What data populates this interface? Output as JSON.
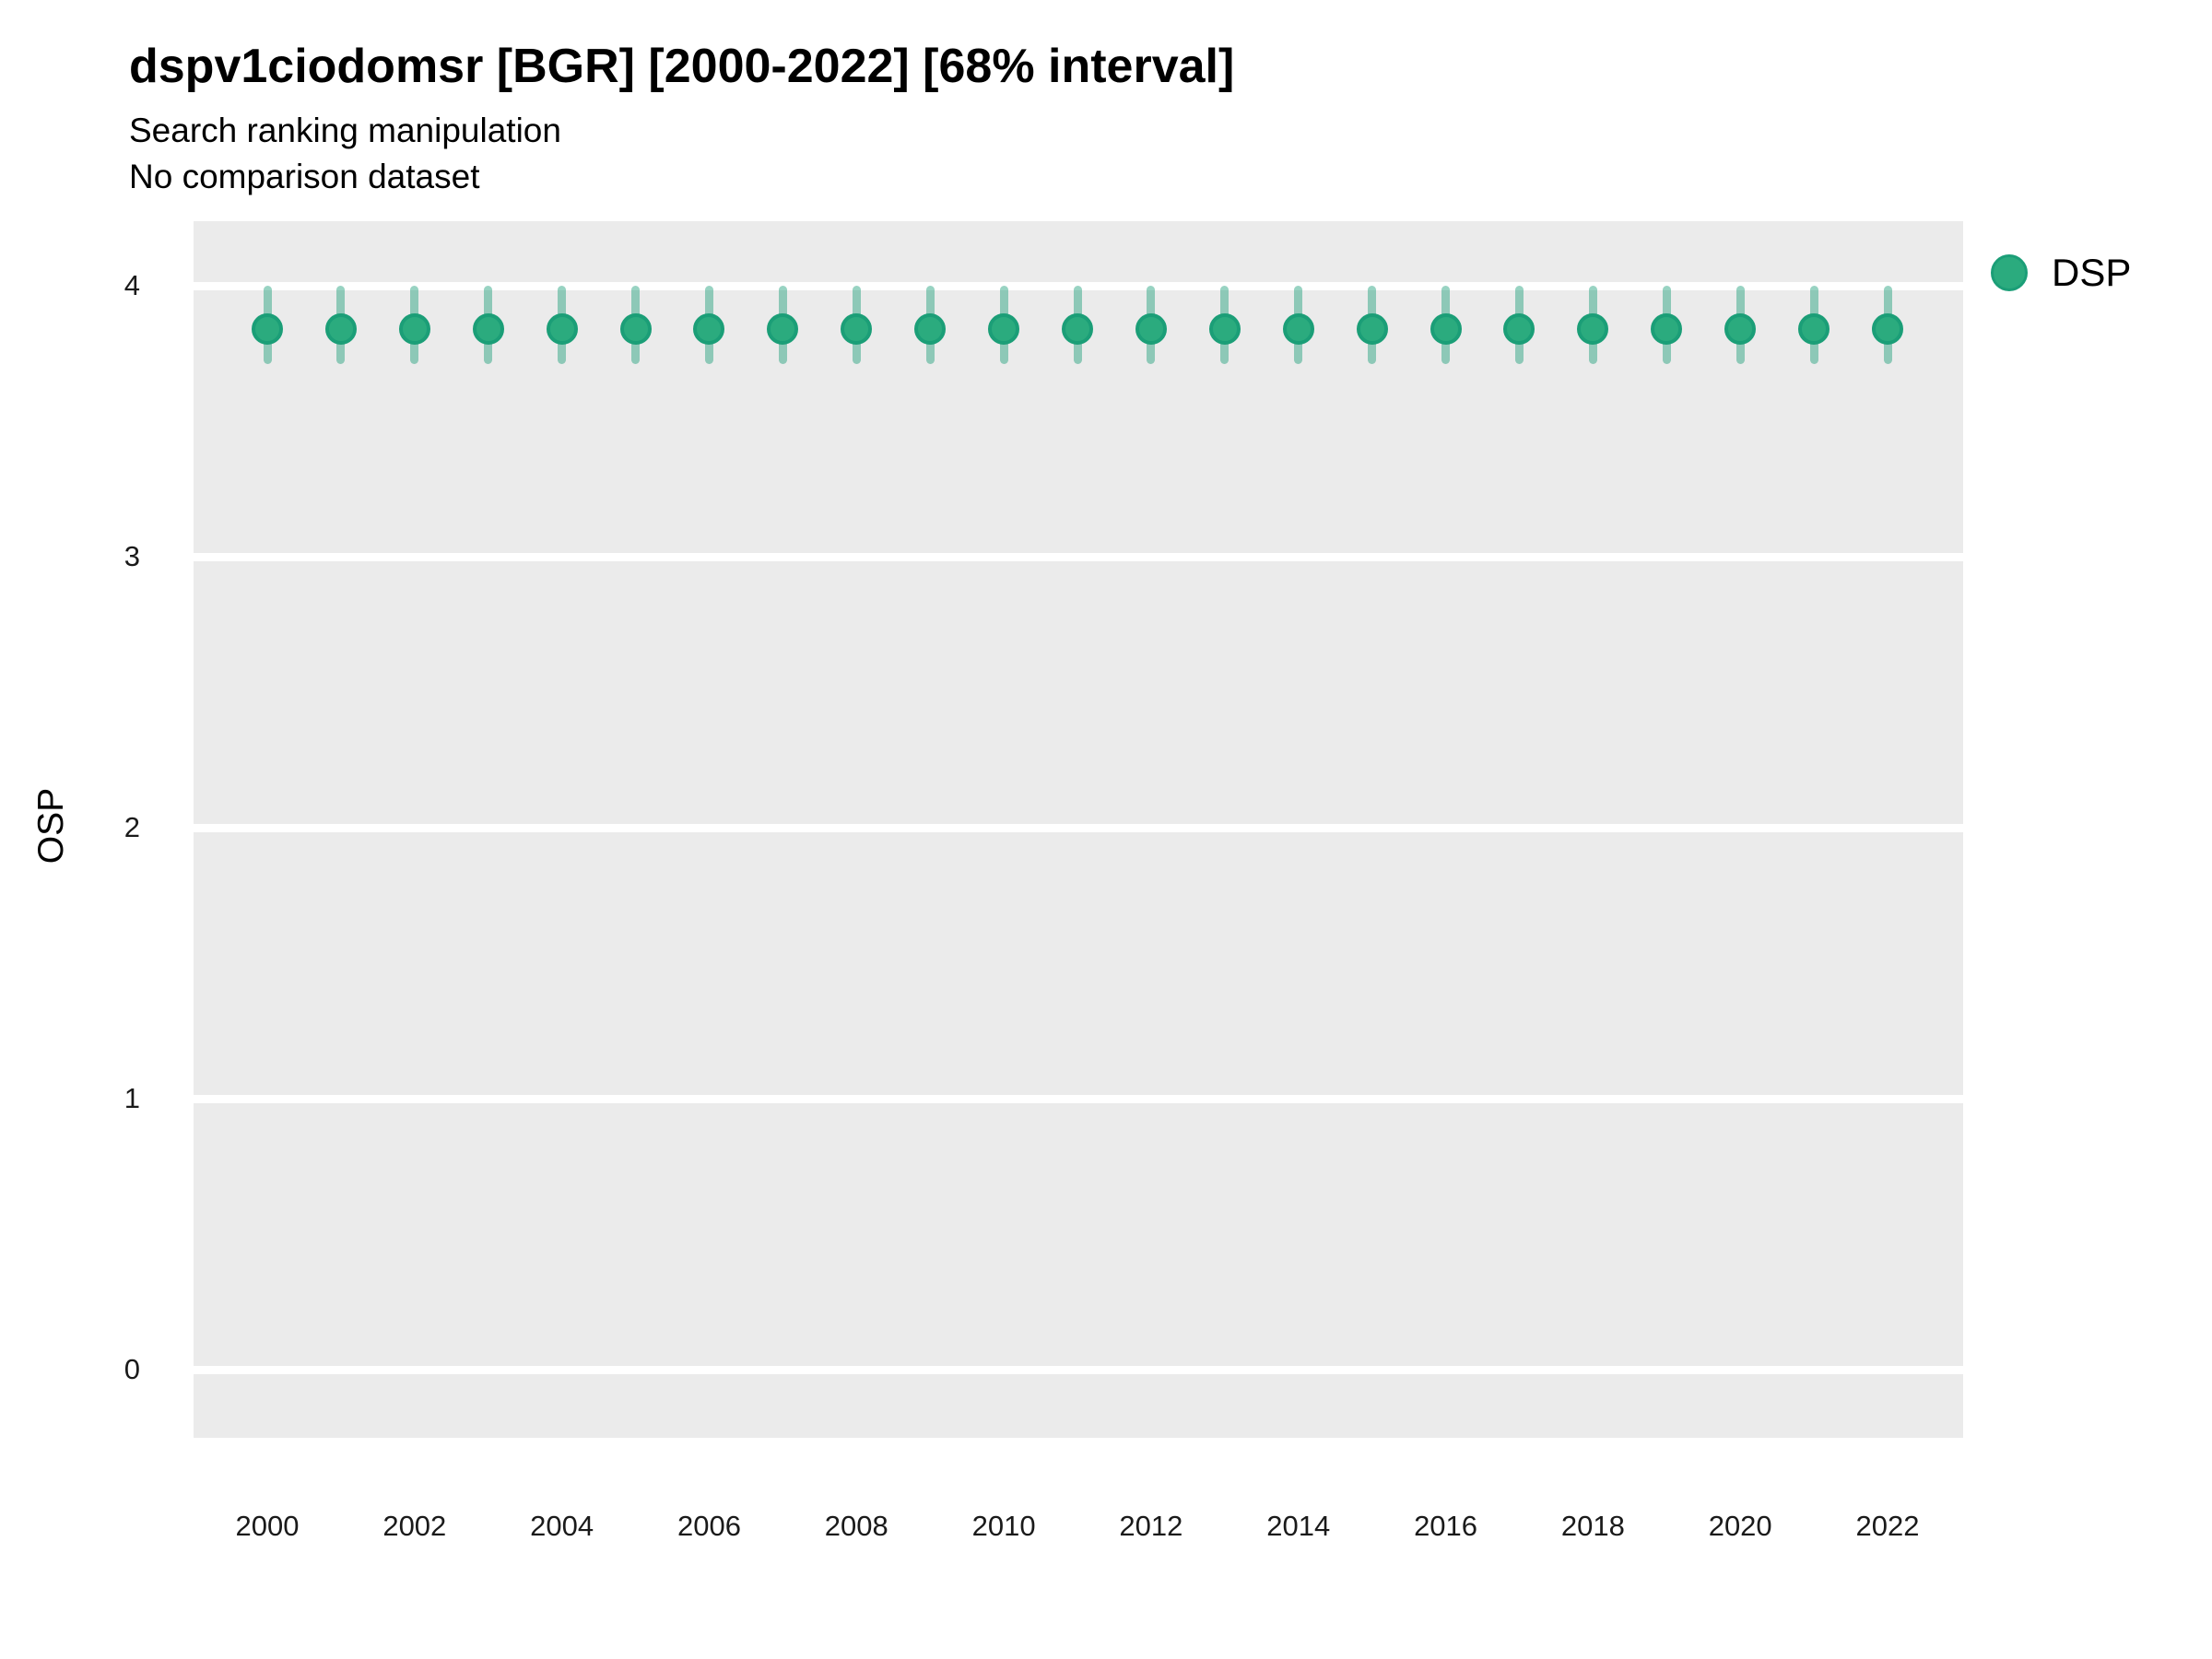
{
  "header": {
    "title": "dspv1ciodomsr [BGR] [2000-2022] [68% interval]",
    "subtitle1": "Search ranking manipulation",
    "subtitle2": "No comparison dataset"
  },
  "legend": {
    "label": "DSP",
    "position": "right-top"
  },
  "axes": {
    "y_label": "OSP",
    "y_ticks": [
      0,
      1,
      2,
      3,
      4
    ],
    "x_ticks": [
      2000,
      2002,
      2004,
      2006,
      2008,
      2010,
      2012,
      2014,
      2016,
      2018,
      2020,
      2022
    ]
  },
  "colors": {
    "point_fill": "#2bab7e",
    "point_stroke": "#1b9e77",
    "errorbar": "rgba(27,158,119,0.45)",
    "panel_bg": "#ebebeb",
    "gridline": "#ffffff",
    "text": "#000000"
  },
  "chart_data": {
    "type": "scatter",
    "subtype": "pointrange",
    "title": "dspv1ciodomsr [BGR] [2000-2022] [68% interval]",
    "subtitle": [
      "Search ranking manipulation",
      "No comparison dataset"
    ],
    "xlabel": "",
    "ylabel": "OSP",
    "xlim": [
      1999,
      2023
    ],
    "ylim": [
      -0.25,
      4.24
    ],
    "grid": "horizontal-major-only",
    "legend_position": "right-top",
    "interval_label": "68% interval",
    "x": [
      2000,
      2001,
      2002,
      2003,
      2004,
      2005,
      2006,
      2007,
      2008,
      2009,
      2010,
      2011,
      2012,
      2013,
      2014,
      2015,
      2016,
      2017,
      2018,
      2019,
      2020,
      2021,
      2022
    ],
    "series": [
      {
        "name": "DSP",
        "values": [
          3.84,
          3.84,
          3.84,
          3.84,
          3.84,
          3.84,
          3.84,
          3.84,
          3.84,
          3.84,
          3.84,
          3.84,
          3.84,
          3.84,
          3.84,
          3.84,
          3.84,
          3.84,
          3.84,
          3.84,
          3.84,
          3.84,
          3.84
        ],
        "lower": [
          3.71,
          3.71,
          3.71,
          3.71,
          3.71,
          3.71,
          3.71,
          3.71,
          3.71,
          3.71,
          3.71,
          3.71,
          3.71,
          3.71,
          3.71,
          3.71,
          3.71,
          3.71,
          3.71,
          3.71,
          3.71,
          3.71,
          3.71
        ],
        "upper": [
          4.0,
          4.0,
          4.0,
          4.0,
          4.0,
          4.0,
          4.0,
          4.0,
          4.0,
          4.0,
          4.0,
          4.0,
          4.0,
          4.0,
          4.0,
          4.0,
          4.0,
          4.0,
          4.0,
          4.0,
          4.0,
          4.0,
          4.0
        ]
      }
    ]
  }
}
